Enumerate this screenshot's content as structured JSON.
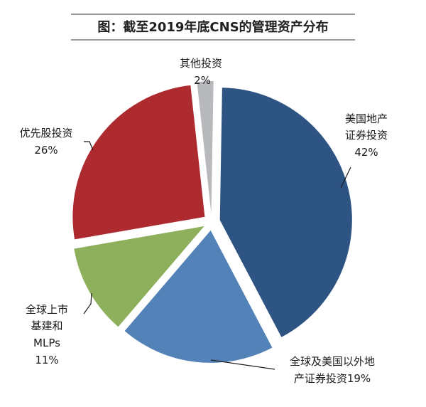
{
  "chart_data": {
    "type": "pie",
    "title": "图：截至2019年底CNS的管理资产分布",
    "slices": [
      {
        "label_lines": [
          "美国地产",
          "证券投资"
        ],
        "pct_label": "42%",
        "value": 42,
        "color": "#2d5482"
      },
      {
        "label_lines": [
          "全球及美国以外地",
          "产证券投资19%"
        ],
        "pct_label": "",
        "value": 19,
        "color": "#5382b8"
      },
      {
        "label_lines": [
          "全球上市",
          "基建和",
          "MLPs"
        ],
        "pct_label": "11%",
        "value": 11,
        "color": "#8eaf5c"
      },
      {
        "label_lines": [
          "优先股投资"
        ],
        "pct_label": "26%",
        "value": 26,
        "color": "#ad2a2f"
      },
      {
        "label_lines": [
          "其他投资"
        ],
        "pct_label": "2%",
        "value": 2,
        "color": "#b8b9bd"
      }
    ]
  }
}
